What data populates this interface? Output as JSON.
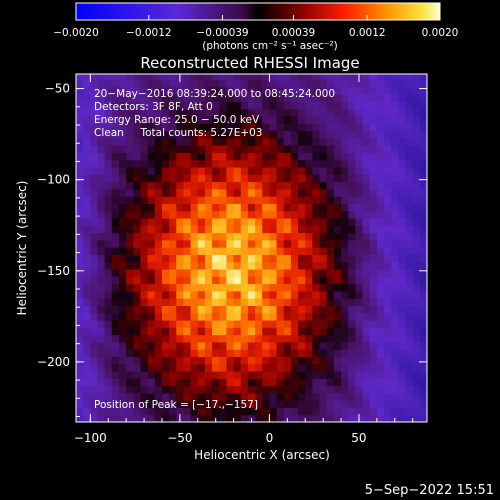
{
  "chart_data": {
    "type": "heatmap",
    "title": "Reconstructed RHESSI Image",
    "xlabel": "Heliocentric X (arcsec)",
    "ylabel": "Heliocentric Y (arcsec)",
    "xlim": [
      -108,
      88
    ],
    "ylim": [
      -233,
      -42
    ],
    "x_ticks": [
      -100,
      -50,
      0,
      50
    ],
    "y_ticks": [
      -50,
      -100,
      -150,
      -200
    ],
    "x_tick_labels": [
      "−100",
      "−50",
      "0",
      "50"
    ],
    "y_tick_labels": [
      "−50",
      "−100",
      "−150",
      "−200"
    ],
    "colorbar": {
      "range": [
        -0.002,
        0.002
      ],
      "tick_values": [
        -0.002,
        -0.0012,
        -0.00039,
        0.00039,
        0.0012,
        0.002
      ],
      "tick_labels": [
        "−0.0020",
        "−0.0012",
        "−0.00039",
        "0.00039",
        "0.0012",
        "0.0020"
      ],
      "unit_label": "(photons cm⁻² s⁻¹ asec⁻²)"
    },
    "annotations": [
      "20−May−2016 08:39:24.000 to 08:45:24.000",
      "Detectors: 3F 8F, Att 0",
      "Energy Range: 25.0 − 50.0 keV",
      "Clean     Total counts: 5.27E+03"
    ],
    "peak_label": "Position of Peak = [−17.,−157]",
    "peak": [
      -17,
      -157
    ],
    "grid": false
  },
  "footer": {
    "date": "5−Sep−2022 15:51"
  }
}
